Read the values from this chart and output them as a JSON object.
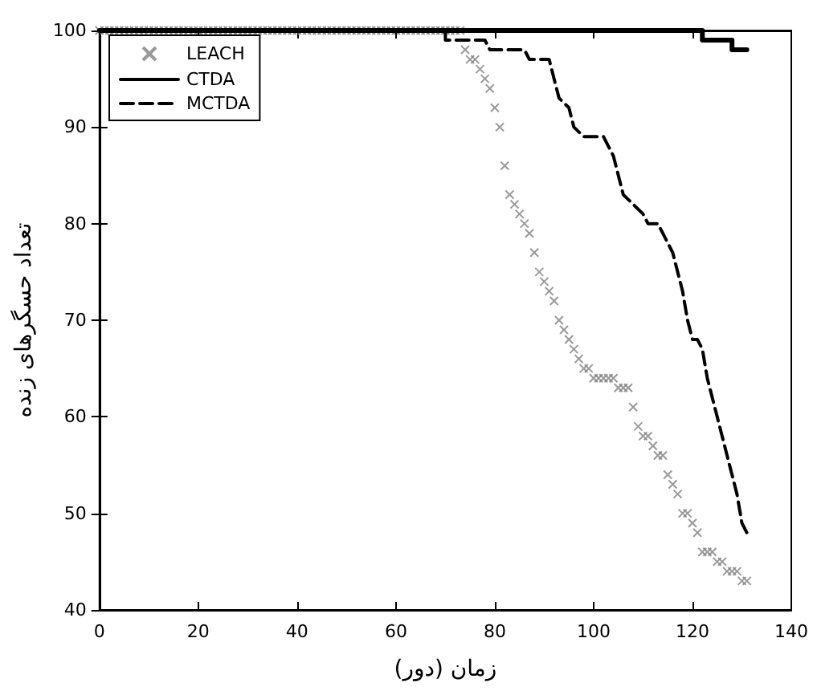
{
  "chart_data": {
    "type": "line",
    "xlabel": "زمان (دور)",
    "ylabel": "تعداد حسگرهای زنده",
    "xlim": [
      0,
      140
    ],
    "xticks": [
      0,
      20,
      40,
      60,
      80,
      100,
      120,
      140
    ],
    "ylim": [
      40,
      100
    ],
    "yticks": [
      40,
      50,
      60,
      70,
      80,
      90,
      100
    ],
    "grid": false,
    "legend": "top left",
    "series": [
      {
        "name": "LEACH",
        "type": "scatter",
        "marker": "cross",
        "color": "#808080",
        "x": [
          0,
          1,
          2,
          3,
          4,
          5,
          6,
          7,
          8,
          9,
          10,
          11,
          12,
          13,
          14,
          15,
          16,
          17,
          18,
          19,
          20,
          21,
          22,
          23,
          24,
          25,
          26,
          27,
          28,
          29,
          30,
          31,
          32,
          33,
          34,
          35,
          36,
          37,
          38,
          39,
          40,
          41,
          42,
          43,
          44,
          45,
          46,
          47,
          48,
          49,
          50,
          51,
          52,
          53,
          54,
          55,
          56,
          57,
          58,
          59,
          60,
          61,
          62,
          63,
          64,
          65,
          66,
          67,
          68,
          69,
          70,
          71,
          72,
          73,
          74,
          75,
          76,
          77,
          78,
          79,
          80,
          81,
          82,
          83,
          84,
          85,
          86,
          87,
          88,
          89,
          90,
          91,
          92,
          93,
          94,
          95,
          96,
          97,
          98,
          99,
          100,
          101,
          102,
          103,
          104,
          105,
          106,
          107,
          108,
          109,
          110,
          111,
          112,
          113,
          114,
          115,
          116,
          117,
          118,
          119,
          120,
          121,
          122,
          123,
          124,
          125,
          126,
          127,
          128,
          129,
          130,
          131
        ],
        "values": [
          100,
          100,
          100,
          100,
          100,
          100,
          100,
          100,
          100,
          100,
          100,
          100,
          100,
          100,
          100,
          100,
          100,
          100,
          100,
          100,
          100,
          100,
          100,
          100,
          100,
          100,
          100,
          100,
          100,
          100,
          100,
          100,
          100,
          100,
          100,
          100,
          100,
          100,
          100,
          100,
          100,
          100,
          100,
          100,
          100,
          100,
          100,
          100,
          100,
          100,
          100,
          100,
          100,
          100,
          100,
          100,
          100,
          100,
          100,
          100,
          100,
          100,
          100,
          100,
          100,
          100,
          100,
          100,
          100,
          100,
          100,
          100,
          100,
          100,
          98,
          97,
          97,
          96,
          95,
          94,
          92,
          90,
          86,
          83,
          82,
          81,
          80,
          79,
          77,
          75,
          74,
          73,
          72,
          70,
          69,
          68,
          67,
          66,
          65,
          65,
          64,
          64,
          64,
          64,
          64,
          63,
          63,
          63,
          61,
          59,
          58,
          58,
          57,
          56,
          56,
          54,
          53,
          52,
          50,
          50,
          49,
          48,
          46,
          46,
          46,
          45,
          45,
          44,
          44,
          44,
          43,
          43
        ]
      },
      {
        "name": "CTDA",
        "line_style": "solid",
        "color": "#000000",
        "x": [
          0,
          122,
          122,
          128,
          128,
          131
        ],
        "values": [
          100,
          100,
          99,
          99,
          98,
          98
        ]
      },
      {
        "name": "MCTDA",
        "line_style": "dashed",
        "color": "#000000",
        "x": [
          0,
          70,
          70,
          78,
          79,
          86,
          87,
          91,
          92,
          93,
          95,
          96,
          98,
          102,
          103,
          104,
          105,
          106,
          108,
          110,
          111,
          113,
          114,
          116,
          117,
          118,
          119,
          120,
          121,
          122,
          123,
          124,
          125,
          126,
          127,
          128,
          129,
          130,
          131
        ],
        "values": [
          100,
          100,
          99,
          99,
          98,
          98,
          97,
          97,
          95,
          93,
          92,
          90,
          89,
          89,
          88,
          87,
          85,
          83,
          82,
          81,
          80,
          80,
          79,
          77,
          75,
          73,
          70,
          68,
          68,
          67,
          64,
          62,
          60,
          58,
          56,
          54,
          52,
          49,
          48
        ]
      }
    ]
  }
}
